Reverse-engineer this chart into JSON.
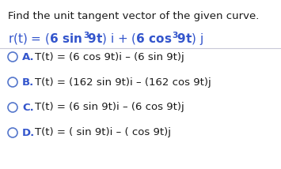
{
  "title": "Find the unit tangent vector of the given curve.",
  "bg_color": "#ffffff",
  "text_color": "#1a1a1a",
  "blue_color": "#3355cc",
  "circle_color": "#5577cc",
  "divider_color": "#c8c8d8",
  "font_size_title": 9.5,
  "font_size_curve": 11,
  "font_size_options": 9.5,
  "options": [
    {
      "letter": "A.",
      "text": "T(t) = (6 cos 9t)i – (6 sin 9t)j"
    },
    {
      "letter": "B.",
      "text": "T(t) = (162 sin 9t)i – (162 cos 9t)j"
    },
    {
      "letter": "C.",
      "text": "T(t) = (6 sin 9t)i – (6 cos 9t)j"
    },
    {
      "letter": "D.",
      "text": "T(t) = ( sin 9t)i – ( cos 9t)j"
    }
  ]
}
